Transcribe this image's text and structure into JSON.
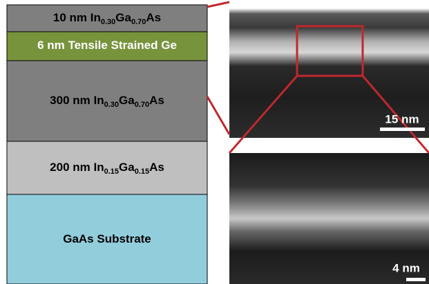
{
  "layers": [
    {
      "parts": [
        "10 nm  In",
        "0.30",
        "Ga",
        "0.70",
        "As"
      ]
    },
    {
      "parts": [
        "6 nm Tensile Strained Ge"
      ]
    },
    {
      "parts": [
        "300 nm  In",
        "0.30",
        "Ga",
        "0.70",
        "As"
      ]
    },
    {
      "parts": [
        "200 nm  In",
        "0.15",
        "Ga",
        "0.15",
        "As"
      ]
    },
    {
      "parts": [
        "GaAs Substrate"
      ]
    }
  ],
  "images": [
    {
      "scale_bar": "15 nm"
    },
    {
      "scale_bar": "4 nm"
    }
  ]
}
